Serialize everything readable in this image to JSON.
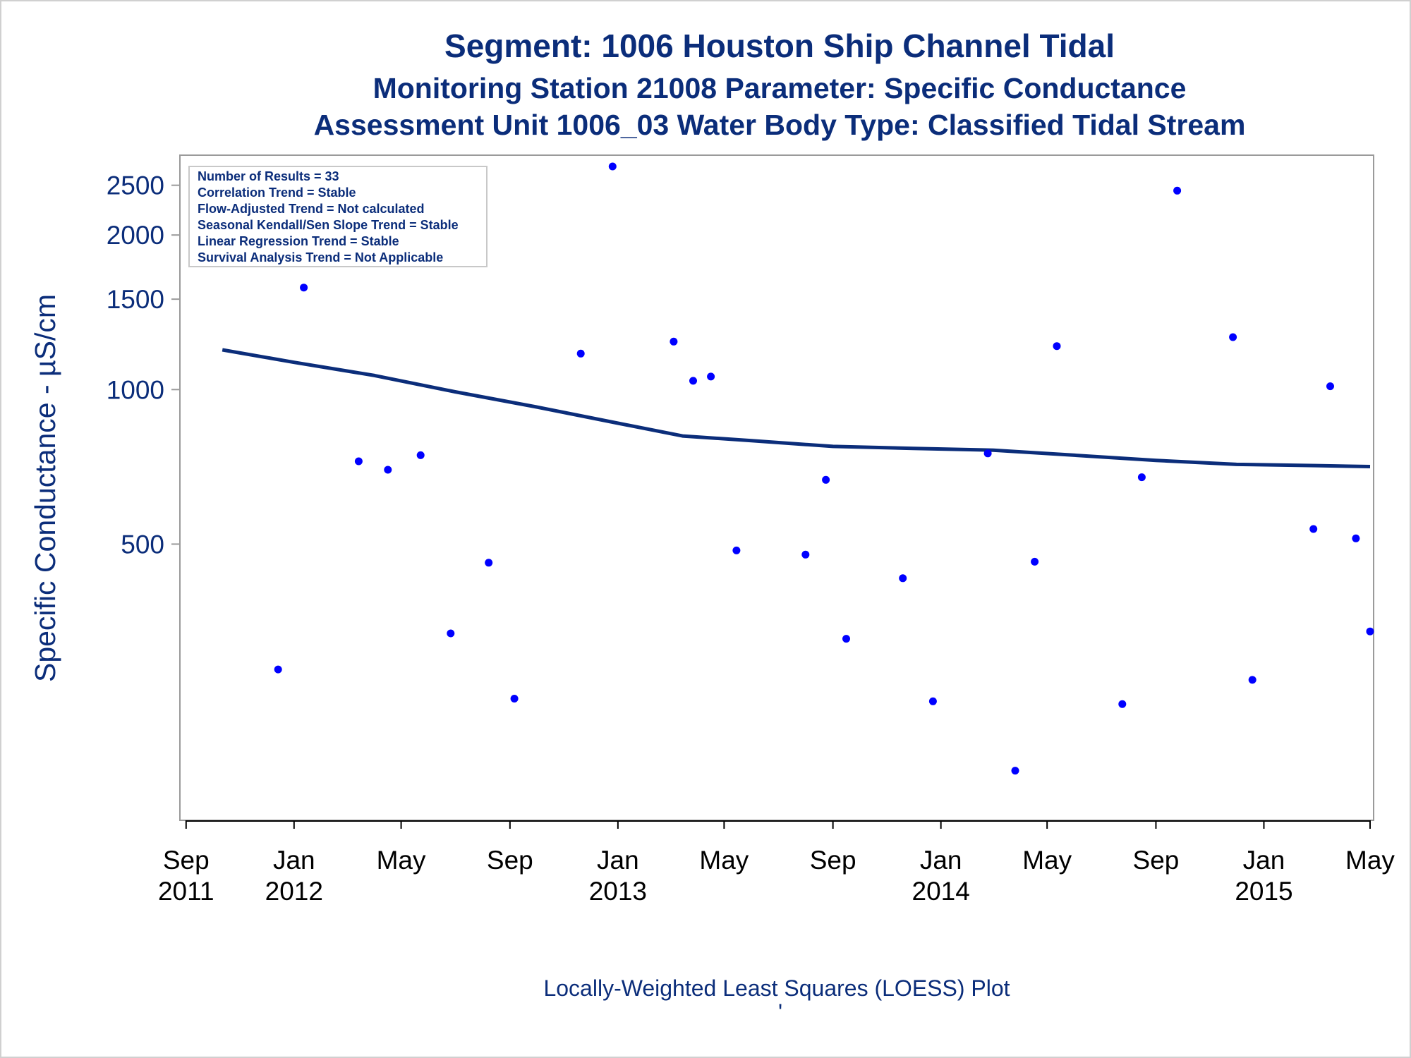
{
  "chart_data": {
    "type": "scatter",
    "title": "Segment: 1006  Houston Ship Channel Tidal",
    "subtitle_1": "Monitoring Station 21008 Parameter: Specific Conductance",
    "subtitle_2": "Assessment Unit 1006_03   Water Body Type: Classified Tidal Stream",
    "ylabel": "Specific Conductance -  µS/cm",
    "footnote": "Locally-Weighted Least Squares (LOESS) Plot",
    "footnote_mark": "'",
    "yscale": "log",
    "ylim": [
      150,
      2720
    ],
    "xlim": [
      "2011-08-25",
      "2015-05-05"
    ],
    "y_ticks": [
      {
        "value": 500,
        "label": "500"
      },
      {
        "value": 1000,
        "label": "1000"
      },
      {
        "value": 1500,
        "label": "1500"
      },
      {
        "value": 2000,
        "label": "2000"
      },
      {
        "value": 2500,
        "label": "2500"
      }
    ],
    "x_ticks": [
      {
        "date": "2011-09-01",
        "line1": "Sep",
        "line2": "2011"
      },
      {
        "date": "2012-01-01",
        "line1": "Jan",
        "line2": "2012"
      },
      {
        "date": "2012-05-01",
        "line1": "May",
        "line2": ""
      },
      {
        "date": "2012-09-01",
        "line1": "Sep",
        "line2": ""
      },
      {
        "date": "2013-01-01",
        "line1": "Jan",
        "line2": "2013"
      },
      {
        "date": "2013-05-01",
        "line1": "May",
        "line2": ""
      },
      {
        "date": "2013-09-01",
        "line1": "Sep",
        "line2": ""
      },
      {
        "date": "2014-01-01",
        "line1": "Jan",
        "line2": "2014"
      },
      {
        "date": "2014-05-01",
        "line1": "May",
        "line2": ""
      },
      {
        "date": "2014-09-01",
        "line1": "Sep",
        "line2": ""
      },
      {
        "date": "2015-01-01",
        "line1": "Jan",
        "line2": "2015"
      },
      {
        "date": "2015-05-01",
        "line1": "May",
        "line2": ""
      }
    ],
    "legend_placement": "top-left",
    "stats": [
      "Number of Results = 33",
      "Correlation Trend = Stable",
      "Flow-Adjusted Trend = Not calculated",
      "Seasonal Kendall/Sen Slope Trend = Stable",
      "Linear Regression Trend = Stable",
      "Survival Analysis Trend = Not Applicable"
    ],
    "grid": false,
    "series": [
      {
        "type": "scatter",
        "color": "#0000ff",
        "points": [
          {
            "x": "2011-10-12",
            "y": 2510
          },
          {
            "x": "2011-12-14",
            "y": 285
          },
          {
            "x": "2012-01-12",
            "y": 1580
          },
          {
            "x": "2012-03-14",
            "y": 725
          },
          {
            "x": "2012-04-16",
            "y": 698
          },
          {
            "x": "2012-05-23",
            "y": 745
          },
          {
            "x": "2012-06-26",
            "y": 335
          },
          {
            "x": "2012-08-08",
            "y": 460
          },
          {
            "x": "2012-09-06",
            "y": 250
          },
          {
            "x": "2012-11-20",
            "y": 1175
          },
          {
            "x": "2012-12-26",
            "y": 2720
          },
          {
            "x": "2013-03-05",
            "y": 1240
          },
          {
            "x": "2013-03-27",
            "y": 1040
          },
          {
            "x": "2013-04-16",
            "y": 1060
          },
          {
            "x": "2013-05-15",
            "y": 486
          },
          {
            "x": "2013-08-01",
            "y": 477
          },
          {
            "x": "2013-08-24",
            "y": 667
          },
          {
            "x": "2013-09-16",
            "y": 327
          },
          {
            "x": "2013-11-19",
            "y": 429
          },
          {
            "x": "2013-12-23",
            "y": 247
          },
          {
            "x": "2014-02-23",
            "y": 751
          },
          {
            "x": "2014-03-26",
            "y": 181
          },
          {
            "x": "2014-04-17",
            "y": 462
          },
          {
            "x": "2014-05-12",
            "y": 1215
          },
          {
            "x": "2014-07-25",
            "y": 244
          },
          {
            "x": "2014-08-16",
            "y": 675
          },
          {
            "x": "2014-09-25",
            "y": 2440
          },
          {
            "x": "2014-11-27",
            "y": 1265
          },
          {
            "x": "2014-12-19",
            "y": 272
          },
          {
            "x": "2015-02-26",
            "y": 535
          },
          {
            "x": "2015-03-17",
            "y": 1015
          },
          {
            "x": "2015-04-15",
            "y": 513
          },
          {
            "x": "2015-05-01",
            "y": 338
          }
        ]
      },
      {
        "type": "line",
        "color": "#0b2d7a",
        "points": [
          {
            "x": "2011-10-12",
            "y": 1195
          },
          {
            "x": "2012-01-01",
            "y": 1130
          },
          {
            "x": "2012-04-01",
            "y": 1065
          },
          {
            "x": "2012-07-01",
            "y": 990
          },
          {
            "x": "2012-10-01",
            "y": 925
          },
          {
            "x": "2013-01-01",
            "y": 860
          },
          {
            "x": "2013-03-15",
            "y": 812
          },
          {
            "x": "2013-06-01",
            "y": 795
          },
          {
            "x": "2013-09-01",
            "y": 775
          },
          {
            "x": "2013-12-01",
            "y": 768
          },
          {
            "x": "2014-03-01",
            "y": 762
          },
          {
            "x": "2014-06-01",
            "y": 745
          },
          {
            "x": "2014-09-01",
            "y": 728
          },
          {
            "x": "2014-12-01",
            "y": 715
          },
          {
            "x": "2015-03-01",
            "y": 711
          },
          {
            "x": "2015-05-01",
            "y": 708
          }
        ]
      }
    ]
  }
}
